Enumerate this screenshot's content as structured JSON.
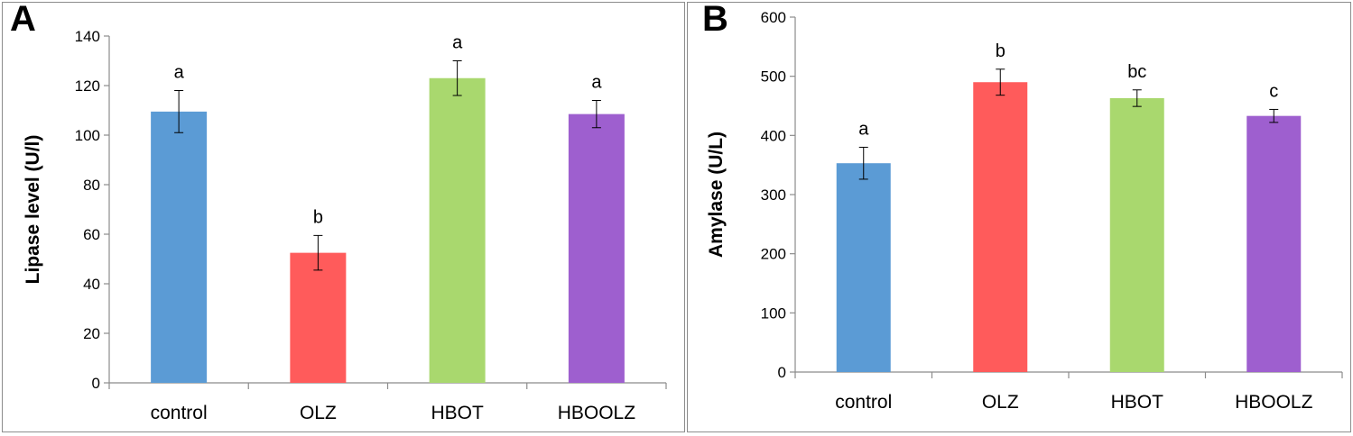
{
  "chart_data": [
    {
      "panel": "A",
      "type": "bar",
      "ylabel": "Lipase level (U/l)",
      "xlabel": "",
      "categories": [
        "control",
        "OLZ",
        "HBOT",
        "HBOOLZ"
      ],
      "values": [
        109.5,
        52.5,
        123,
        108.5
      ],
      "errors": [
        8.5,
        7,
        7,
        5.5
      ],
      "annotations": [
        "a",
        "b",
        "a",
        "a"
      ],
      "colors": [
        "#5b9bd5",
        "#ff5b5b",
        "#a9d86e",
        "#9e5fcf"
      ],
      "ylim": [
        0,
        140
      ],
      "yticks": [
        0,
        20,
        40,
        60,
        80,
        100,
        120,
        140
      ]
    },
    {
      "panel": "B",
      "type": "bar",
      "ylabel": "Amylase (U/L)",
      "xlabel": "",
      "categories": [
        "control",
        "OLZ",
        "HBOT",
        "HBOOLZ"
      ],
      "values": [
        353,
        490,
        463,
        433
      ],
      "errors": [
        27,
        22,
        14,
        11
      ],
      "annotations": [
        "a",
        "b",
        "bc",
        "c"
      ],
      "colors": [
        "#5b9bd5",
        "#ff5b5b",
        "#a9d86e",
        "#9e5fcf"
      ],
      "ylim": [
        0,
        600
      ],
      "yticks": [
        0,
        100,
        200,
        300,
        400,
        500,
        600
      ]
    }
  ]
}
